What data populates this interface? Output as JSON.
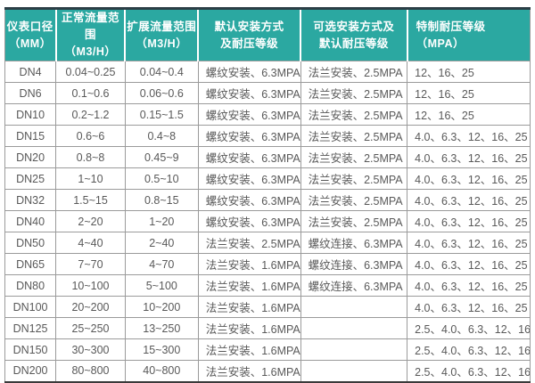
{
  "table": {
    "columns": [
      {
        "line1": "仪表口径",
        "line2": "（MM）"
      },
      {
        "line1": "正常流量范围",
        "line2": "（M3/H）"
      },
      {
        "line1": "扩展流量范围",
        "line2": "（M3/H）"
      },
      {
        "line1": "默认安装方式",
        "line2": "及耐压等级"
      },
      {
        "line1": "可选安装方式及",
        "line2": "默认耐压等级"
      },
      {
        "line1": "特制耐压等级",
        "line2": "（MPA）"
      }
    ],
    "rows": [
      [
        "DN4",
        "0.04~0.25",
        "0.04~0.4",
        "螺纹安装、6.3MPA",
        "法兰安装、2.5MPA",
        "12、16、25"
      ],
      [
        "DN6",
        "0.1~0.6",
        "0.06~0.6",
        "螺纹安装、6.3MPA",
        "法兰安装、2.5MPA",
        "12、16、25"
      ],
      [
        "DN10",
        "0.2~1.2",
        "0.15~1.5",
        "螺纹安装、6.3MPA",
        "法兰安装、2.5MPA",
        "12、16、25"
      ],
      [
        "DN15",
        "0.6~6",
        "0.4~8",
        "螺纹安装、6.3MPA",
        "法兰安装、2.5MPA",
        "4.0、6.3、12、16、25"
      ],
      [
        "DN20",
        "0.8~8",
        "0.45~9",
        "螺纹安装、6.3MPA",
        "法兰安装、2.5MPA",
        "4.0、6.3、12、16、25"
      ],
      [
        "DN25",
        "1~10",
        "0.5~10",
        "螺纹安装、6.3MPA",
        "法兰安装、2.5MPA",
        "4.0、6.3、12、16、25"
      ],
      [
        "DN32",
        "1.5~15",
        "0.8~15",
        "螺纹安装、6.3MPA",
        "法兰安装、2.5MPA",
        "4.0、6.3、12、16、25"
      ],
      [
        "DN40",
        "2~20",
        "1~20",
        "螺纹安装、6.3MPA",
        "法兰安装、2.5MPA",
        "4.0、6.3、12、16、25"
      ],
      [
        "DN50",
        "4~40",
        "2~40",
        "法兰安装、2.5MPA",
        "螺纹连接、6.3MPA",
        "4.0、6.3、12、16、25"
      ],
      [
        "DN65",
        "7~70",
        "4~70",
        "法兰安装、1.6MPA",
        "螺纹连接、6.3MPA",
        "4.0、6.3、12、16、25"
      ],
      [
        "DN80",
        "10~100",
        "5~100",
        "法兰安装、1.6MPA",
        "螺纹连接、6.3MPA",
        "4.0、6.3、12、16、25"
      ],
      [
        "DN100",
        "20~200",
        "10~200",
        "法兰安装、1.6MPA",
        "",
        "4.0、6.3、12、16、25"
      ],
      [
        "DN125",
        "25~250",
        "13~250",
        "法兰安装、1.6MPA",
        "",
        "2.5、4.0、6.3、12、16"
      ],
      [
        "DN150",
        "30~300",
        "15~300",
        "法兰安装、1.6MPA",
        "",
        "2.5、4.0、6.3、12、16"
      ],
      [
        "DN200",
        "80~800",
        "40~800",
        "法兰安装、1.6MPA",
        "",
        "2.5、4.0、6.3、12、16"
      ]
    ],
    "colors": {
      "header_bg": "#2BA8A1",
      "header_text": "#FFFFFF",
      "body_text": "#595959",
      "grid_border": "#9B9B9B",
      "outer_top_border": "#2B3E46",
      "outer_bottom_border": "#3A3A3A"
    }
  }
}
